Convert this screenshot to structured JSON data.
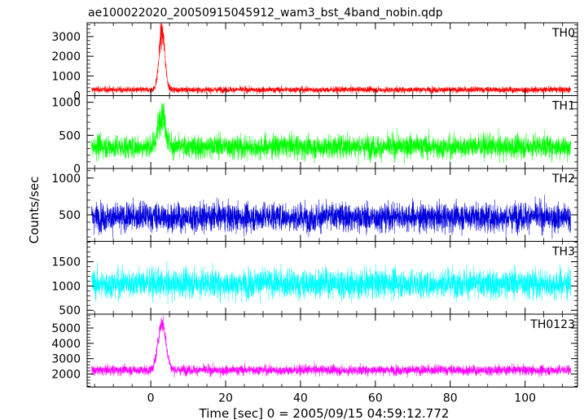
{
  "chart_data": {
    "type": "line",
    "title": "ae100022020_20050915045912_wam3_bst_4band_nobin.qdp",
    "xlabel": "Time [sec] 0 = 2005/09/15 04:59:12.772",
    "ylabel": "Counts/sec",
    "xlim": [
      -17,
      114
    ],
    "x_ticks": [
      "0",
      "20",
      "40",
      "60",
      "80",
      "100"
    ],
    "x_tick_values": [
      0,
      20,
      40,
      60,
      80,
      100
    ],
    "x_data_range": [
      -15.8,
      112.2
    ],
    "grid": false,
    "series": [
      {
        "name": "TH0",
        "color": "#ff0000",
        "ylim": [
          0,
          3700
        ],
        "y_ticks": [
          "0",
          "1000",
          "2000",
          "3000"
        ],
        "y_tick_values": [
          0,
          1000,
          2000,
          3000
        ],
        "baseline": 300,
        "noise": 110,
        "peak_x": 3.0,
        "peak_amplitude": 2900,
        "peak_width": 1.1,
        "points": [
          [
            -15.8,
            350
          ],
          [
            -5,
            320
          ],
          [
            0,
            380
          ],
          [
            2,
            1300
          ],
          [
            3,
            3250
          ],
          [
            4,
            1500
          ],
          [
            6,
            420
          ],
          [
            20,
            310
          ],
          [
            40,
            300
          ],
          [
            60,
            300
          ],
          [
            80,
            290
          ],
          [
            100,
            290
          ],
          [
            112.2,
            280
          ]
        ]
      },
      {
        "name": "TH1",
        "color": "#00ff00",
        "ylim": [
          0,
          1100
        ],
        "y_ticks": [
          "0",
          "500",
          "1000"
        ],
        "y_tick_values": [
          0,
          500,
          1000
        ],
        "baseline": 330,
        "noise": 125,
        "peak_x": 3.0,
        "peak_amplitude": 520,
        "peak_width": 1.3,
        "points": [
          [
            -15.8,
            340
          ],
          [
            -5,
            320
          ],
          [
            0,
            350
          ],
          [
            2,
            620
          ],
          [
            3,
            900
          ],
          [
            4,
            650
          ],
          [
            6,
            380
          ],
          [
            20,
            330
          ],
          [
            40,
            330
          ],
          [
            60,
            330
          ],
          [
            80,
            330
          ],
          [
            100,
            330
          ],
          [
            112.2,
            320
          ]
        ]
      },
      {
        "name": "TH2",
        "color": "#0000dd",
        "ylim": [
          140,
          1130
        ],
        "y_ticks": [
          "500",
          "1000"
        ],
        "y_tick_values": [
          500,
          1000
        ],
        "baseline": 470,
        "noise": 135,
        "peak_x": 3.0,
        "peak_amplitude": 0,
        "peak_width": 1.0,
        "points": [
          [
            -15.8,
            470
          ],
          [
            0,
            470
          ],
          [
            20,
            470
          ],
          [
            40,
            470
          ],
          [
            60,
            470
          ],
          [
            80,
            470
          ],
          [
            100,
            470
          ],
          [
            112.2,
            470
          ]
        ]
      },
      {
        "name": "TH3",
        "color": "#00ffff",
        "ylim": [
          420,
          1920
        ],
        "y_ticks": [
          "500",
          "1000",
          "1500"
        ],
        "y_tick_values": [
          500,
          1000,
          1500
        ],
        "baseline": 1050,
        "noise": 210,
        "peak_x": 3.0,
        "peak_amplitude": 0,
        "peak_width": 1.0,
        "points": [
          [
            -15.8,
            1050
          ],
          [
            0,
            1050
          ],
          [
            20,
            1050
          ],
          [
            40,
            1050
          ],
          [
            60,
            1050
          ],
          [
            80,
            1050
          ],
          [
            100,
            1050
          ],
          [
            112.2,
            1050
          ]
        ]
      },
      {
        "name": "TH0123",
        "color": "#ff00ff",
        "ylim": [
          1150,
          5900
        ],
        "y_ticks": [
          "2000",
          "3000",
          "4000",
          "5000"
        ],
        "y_tick_values": [
          2000,
          3000,
          4000,
          5000
        ],
        "baseline": 2250,
        "noise": 230,
        "peak_x": 3.0,
        "peak_amplitude": 3100,
        "peak_width": 1.5,
        "points": [
          [
            -15.8,
            2300
          ],
          [
            -5,
            2250
          ],
          [
            0,
            2400
          ],
          [
            2,
            3700
          ],
          [
            3,
            5400
          ],
          [
            4,
            3800
          ],
          [
            6,
            2550
          ],
          [
            20,
            2250
          ],
          [
            40,
            2250
          ],
          [
            60,
            2250
          ],
          [
            80,
            2250
          ],
          [
            100,
            2250
          ],
          [
            112.2,
            2200
          ]
        ]
      }
    ]
  }
}
